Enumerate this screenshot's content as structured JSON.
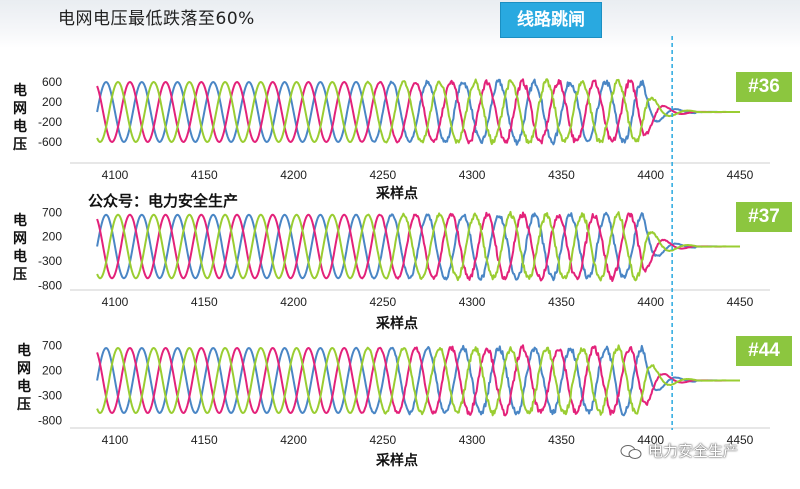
{
  "page_title": "电网电压最低跌落至60%",
  "trip_label": "线路跳闸",
  "watermark_top": "公众号：电力安全生产",
  "watermark_bottom": "电力安全生产",
  "colors": {
    "phase_a": "#4a86c5",
    "phase_b": "#e3227a",
    "phase_c": "#9acd32",
    "trip_line": "#29a9e0",
    "tag_bg": "#8cc63f"
  },
  "chart_data": [
    {
      "type": "line",
      "tag": "#36",
      "ylabel": "电网电压",
      "xlabel": "采样点",
      "yticks": [
        600,
        200,
        -200,
        -600
      ],
      "ylim": [
        -800,
        800
      ],
      "xticks": [
        4100,
        4150,
        4200,
        4250,
        4300,
        4350,
        4400,
        4450
      ],
      "xlim": [
        4090,
        4460
      ],
      "trip_at": 4412,
      "series": [
        {
          "color_key": "phase_a",
          "amplitude": 600,
          "phase_deg": 0,
          "period": 20,
          "decay_start": 4395,
          "end": 4450
        },
        {
          "color_key": "phase_b",
          "amplitude": 600,
          "phase_deg": 120,
          "period": 20,
          "decay_start": 4395,
          "end": 4450
        },
        {
          "color_key": "phase_c",
          "amplitude": 600,
          "phase_deg": 240,
          "period": 20,
          "decay_start": 4395,
          "end": 4450
        }
      ]
    },
    {
      "type": "line",
      "tag": "#37",
      "ylabel": "电网电压",
      "xlabel": "采样点",
      "yticks": [
        700,
        200,
        -300,
        -800
      ],
      "ylim": [
        -850,
        850
      ],
      "xticks": [
        4100,
        4150,
        4200,
        4250,
        4300,
        4350,
        4400,
        4450
      ],
      "xlim": [
        4090,
        4460
      ],
      "trip_at": 4412,
      "series": [
        {
          "color_key": "phase_a",
          "amplitude": 650,
          "phase_deg": 0,
          "period": 20,
          "decay_start": 4395,
          "end": 4450
        },
        {
          "color_key": "phase_b",
          "amplitude": 650,
          "phase_deg": 120,
          "period": 20,
          "decay_start": 4395,
          "end": 4450
        },
        {
          "color_key": "phase_c",
          "amplitude": 650,
          "phase_deg": 240,
          "period": 20,
          "decay_start": 4395,
          "end": 4450
        }
      ]
    },
    {
      "type": "line",
      "tag": "#44",
      "ylabel": "电网电压",
      "xlabel": "采样点",
      "yticks": [
        700,
        200,
        -300,
        -800
      ],
      "ylim": [
        -850,
        850
      ],
      "xticks": [
        4100,
        4150,
        4200,
        4250,
        4300,
        4350,
        4400,
        4450
      ],
      "xlim": [
        4090,
        4460
      ],
      "trip_at": 4412,
      "series": [
        {
          "color_key": "phase_a",
          "amplitude": 650,
          "phase_deg": 0,
          "period": 20,
          "decay_start": 4395,
          "end": 4450
        },
        {
          "color_key": "phase_b",
          "amplitude": 650,
          "phase_deg": 120,
          "period": 20,
          "decay_start": 4395,
          "end": 4450
        },
        {
          "color_key": "phase_c",
          "amplitude": 650,
          "phase_deg": 240,
          "period": 20,
          "decay_start": 4395,
          "end": 4450
        }
      ]
    }
  ]
}
